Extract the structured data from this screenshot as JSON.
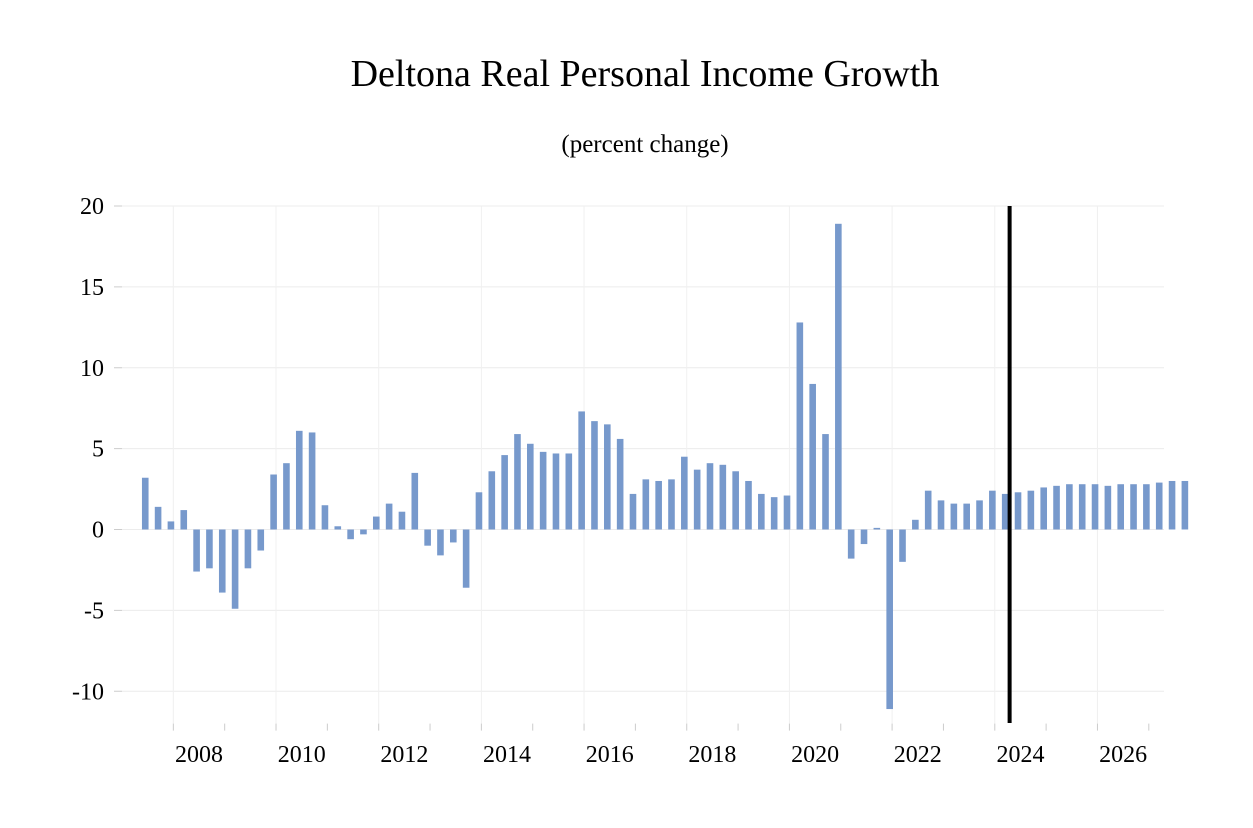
{
  "chart_data": {
    "type": "bar",
    "title": "Deltona Real Personal Income Growth",
    "subtitle": "(percent change)",
    "xlabel": "",
    "ylabel": "",
    "ylim": [
      -12,
      20
    ],
    "y_ticks": [
      20,
      15,
      10,
      5,
      0,
      -5,
      -10
    ],
    "y_tick_labels": [
      "20",
      "15",
      "10",
      "5",
      "0",
      "-5",
      "-10"
    ],
    "x_tick_labels": [
      "2008",
      "2010",
      "2012",
      "2014",
      "2016",
      "2018",
      "2020",
      "2022",
      "2024",
      "2026"
    ],
    "grid": true,
    "bar_color": "#7799cc",
    "forecast_line_color": "#000000",
    "forecast_start": "2024Q2",
    "series": [
      {
        "x": [
          "2007Q2",
          "2007Q3",
          "2007Q4",
          "2008Q1",
          "2008Q2",
          "2008Q3",
          "2008Q4",
          "2009Q1",
          "2009Q2",
          "2009Q3",
          "2009Q4",
          "2010Q1",
          "2010Q2",
          "2010Q3",
          "2010Q4",
          "2011Q1",
          "2011Q2",
          "2011Q3",
          "2011Q4",
          "2012Q1",
          "2012Q2",
          "2012Q3",
          "2012Q4",
          "2013Q1",
          "2013Q2",
          "2013Q3",
          "2013Q4",
          "2014Q1",
          "2014Q2",
          "2014Q3",
          "2014Q4",
          "2015Q1",
          "2015Q2",
          "2015Q3",
          "2015Q4",
          "2016Q1",
          "2016Q2",
          "2016Q3",
          "2016Q4",
          "2017Q1",
          "2017Q2",
          "2017Q3",
          "2017Q4",
          "2018Q1",
          "2018Q2",
          "2018Q3",
          "2018Q4",
          "2019Q1",
          "2019Q2",
          "2019Q3",
          "2019Q4",
          "2020Q1",
          "2020Q2",
          "2020Q3",
          "2020Q4",
          "2021Q1",
          "2021Q2",
          "2021Q3",
          "2021Q4",
          "2022Q1",
          "2022Q2",
          "2022Q3",
          "2022Q4",
          "2023Q1",
          "2023Q2",
          "2023Q3",
          "2023Q4",
          "2024Q1",
          "2024Q2",
          "2024Q3",
          "2024Q4",
          "2025Q1",
          "2025Q2",
          "2025Q3",
          "2025Q4",
          "2026Q1",
          "2026Q2",
          "2026Q3",
          "2026Q4",
          "2027Q1",
          "2027Q2",
          "2027Q3"
        ],
        "values": [
          3.2,
          1.4,
          0.5,
          1.2,
          -2.6,
          -2.4,
          -3.9,
          -4.9,
          -2.4,
          -1.3,
          3.4,
          4.1,
          6.1,
          6.0,
          1.5,
          0.2,
          -0.6,
          -0.3,
          0.8,
          1.6,
          1.1,
          3.5,
          -1.0,
          -1.6,
          -0.8,
          -3.6,
          2.3,
          3.6,
          4.6,
          5.9,
          5.3,
          4.8,
          4.7,
          4.7,
          7.3,
          6.7,
          6.5,
          5.6,
          2.2,
          3.1,
          3.0,
          3.1,
          4.5,
          3.7,
          4.1,
          4.0,
          3.6,
          3.0,
          2.2,
          2.0,
          2.1,
          12.8,
          9.0,
          5.9,
          18.9,
          -1.8,
          -0.9,
          0.1,
          -11.1,
          -2.0,
          0.6,
          2.4,
          1.8,
          1.6,
          1.6,
          1.8,
          2.4,
          2.2,
          2.3,
          2.4,
          2.6,
          2.7,
          2.8,
          2.8,
          2.8,
          2.7,
          2.8,
          2.8,
          2.8,
          2.9,
          3.0,
          3.0
        ]
      }
    ]
  }
}
